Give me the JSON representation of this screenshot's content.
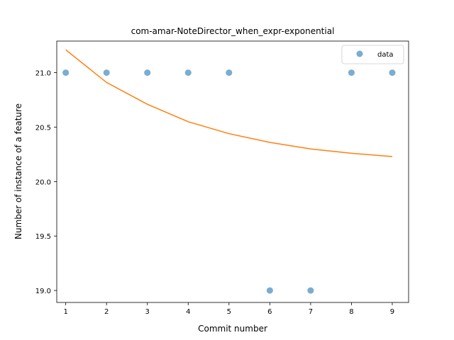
{
  "chart_data": {
    "type": "scatter",
    "title": "com-amar-NoteDirector_when_expr-exponential",
    "xlabel": "Commit number",
    "ylabel": "Number of instance of a feature",
    "xlim": [
      0.78,
      9.4
    ],
    "ylim": [
      18.89,
      21.29
    ],
    "x_ticks": [
      1,
      2,
      3,
      4,
      5,
      6,
      7,
      8,
      9
    ],
    "x_tick_labels": [
      "1",
      "2",
      "3",
      "4",
      "5",
      "6",
      "7",
      "8",
      "9"
    ],
    "y_ticks": [
      19.0,
      19.5,
      20.0,
      20.5,
      21.0
    ],
    "y_tick_labels": [
      "19.0",
      "19.5",
      "20.0",
      "20.5",
      "21.0"
    ],
    "grid": false,
    "legend_position": "top-right",
    "series": [
      {
        "name": "data",
        "kind": "points",
        "color": "#1f77b4",
        "x": [
          1,
          2,
          3,
          4,
          5,
          6,
          7,
          8,
          9
        ],
        "y": [
          21,
          21,
          21,
          21,
          21,
          19,
          19,
          21,
          21
        ]
      },
      {
        "kind": "line",
        "color": "#ff7f0e",
        "x": [
          1,
          2,
          3,
          4,
          5,
          6,
          7,
          8,
          9
        ],
        "y": [
          21.21,
          20.91,
          20.71,
          20.55,
          20.44,
          20.36,
          20.3,
          20.26,
          20.23
        ]
      }
    ]
  }
}
